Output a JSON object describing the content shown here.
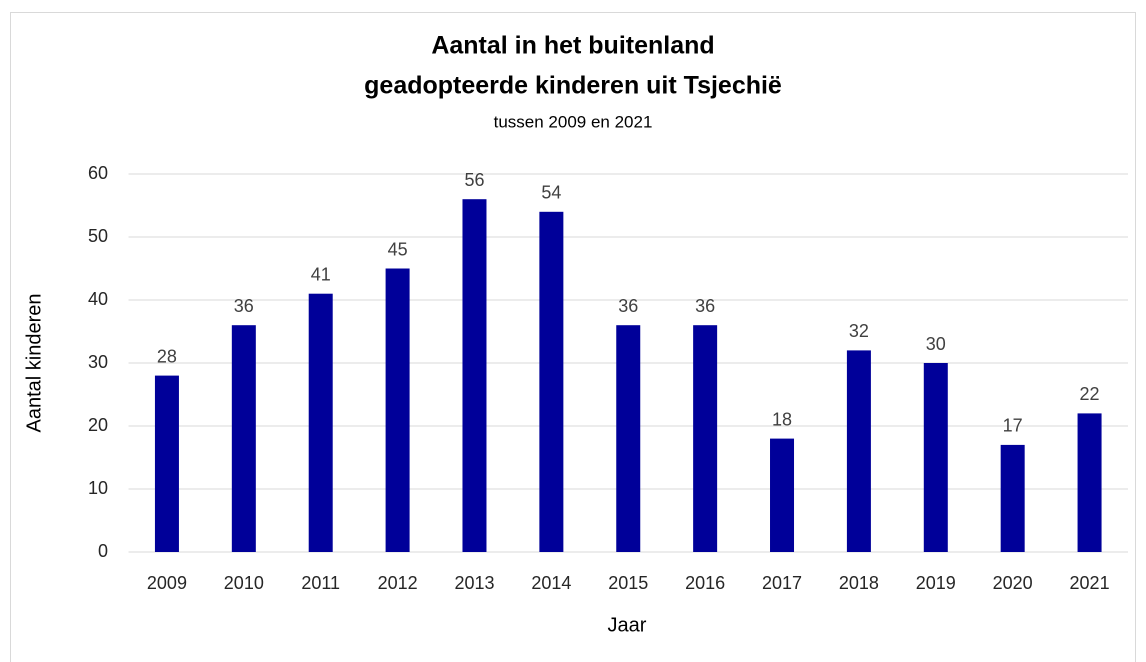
{
  "chart_data": {
    "type": "bar",
    "title": [
      "Aantal in het buitenland",
      "geadopteerde kinderen uit Tsjechië"
    ],
    "subtitle": "tussen 2009 en 2021",
    "x_label": "Jaar",
    "y_label": "Aantal kinderen",
    "categories": [
      "2009",
      "2010",
      "2011",
      "2012",
      "2013",
      "2014",
      "2015",
      "2016",
      "2017",
      "2018",
      "2019",
      "2020",
      "2021"
    ],
    "values": [
      28,
      36,
      41,
      45,
      56,
      54,
      36,
      36,
      18,
      32,
      30,
      17,
      22
    ],
    "color": "#000099",
    "ylim": [
      0,
      60
    ],
    "yticks": [
      0,
      10,
      20,
      30,
      40,
      50,
      60
    ],
    "grid": true
  }
}
